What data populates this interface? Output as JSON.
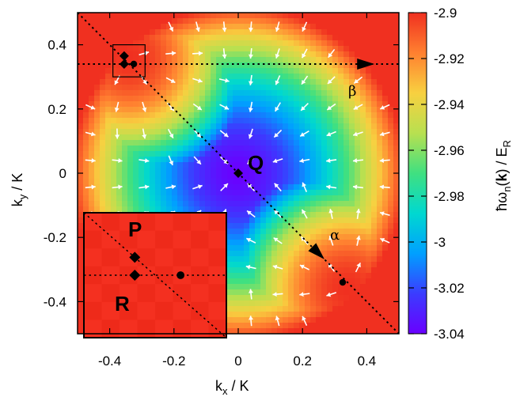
{
  "chart_data": {
    "type": "heatmap",
    "x_axis": {
      "label_main": "k",
      "label_sub": "x",
      "label_tail": " / K",
      "range": [
        -0.5,
        0.5
      ],
      "ticks": [
        "-0.4",
        "-0.2",
        "0",
        "0.2",
        "0.4"
      ],
      "tick_values": [
        -0.4,
        -0.2,
        0,
        0.2,
        0.4
      ]
    },
    "y_axis": {
      "label_main": "k",
      "label_sub": "y",
      "label_tail": " / K",
      "range": [
        -0.5,
        0.5
      ],
      "ticks": [
        "0.4",
        "0.2",
        "0",
        "-0.2",
        "-0.4"
      ],
      "tick_values": [
        0.4,
        0.2,
        0,
        -0.2,
        -0.4
      ]
    },
    "colorbar": {
      "label": {
        "hbar": "ħω",
        "sub": "n",
        "paren_open": "(",
        "bold": "k",
        "paren_close": ")",
        "mid": " / E",
        "sub2": "R"
      },
      "range": [
        -3.04,
        -2.9
      ],
      "ticks": [
        "-2.9",
        "-2.92",
        "-2.94",
        "-2.96",
        "-2.98",
        "-3",
        "-3.02",
        "-3.04"
      ],
      "tick_values": [
        -2.9,
        -2.92,
        -2.94,
        -2.96,
        -2.98,
        -3.0,
        -3.02,
        -3.04
      ],
      "colormap": [
        "#6a00ff",
        "#3b3cff",
        "#00a0ff",
        "#00d8d0",
        "#40e080",
        "#b8e050",
        "#f8d040",
        "#ff8030",
        "#f03020"
      ]
    },
    "field": {
      "max_points": [
        [
          -0.34,
          0.36
        ],
        [
          0.34,
          -0.36
        ]
      ],
      "min_point": [
        0.0,
        0.0
      ]
    },
    "lines": [
      {
        "name": "alpha",
        "label": "α",
        "from": [
          -0.5,
          0.5
        ],
        "to": [
          0.5,
          -0.5
        ],
        "arrow_at": [
          0.23,
          -0.23
        ]
      },
      {
        "name": "beta",
        "label": "β",
        "from": [
          -0.5,
          0.34
        ],
        "to": [
          0.5,
          0.34
        ],
        "arrow_at": [
          0.37,
          0.34
        ]
      }
    ],
    "points": [
      {
        "name": "Q",
        "label": "Q",
        "x": 0.0,
        "y": 0.0,
        "marker": "diamond"
      },
      {
        "name": "P",
        "label": "",
        "x": -0.355,
        "y": 0.365,
        "marker": "diamond"
      },
      {
        "name": "R",
        "label": "",
        "x": -0.355,
        "y": 0.34,
        "marker": "diamond"
      },
      {
        "name": "beta-max",
        "label": "",
        "x": -0.325,
        "y": 0.34,
        "marker": "dot"
      },
      {
        "name": "alpha-max",
        "label": "",
        "x": 0.325,
        "y": -0.34,
        "marker": "dot"
      }
    ],
    "zoom_box": {
      "x_range": [
        -0.39,
        -0.29
      ],
      "y_range": [
        0.3,
        0.4
      ]
    },
    "inset": {
      "labels": [
        "P",
        "R"
      ],
      "points": [
        {
          "name": "P",
          "u": -0.1,
          "v": 0.1,
          "marker": "diamond"
        },
        {
          "name": "R",
          "u": -0.1,
          "v": 0.0,
          "marker": "diamond"
        },
        {
          "name": "beta-max",
          "u": 0.125,
          "v": 0.0,
          "marker": "dot"
        }
      ],
      "range": [
        -0.35,
        0.35
      ]
    }
  }
}
